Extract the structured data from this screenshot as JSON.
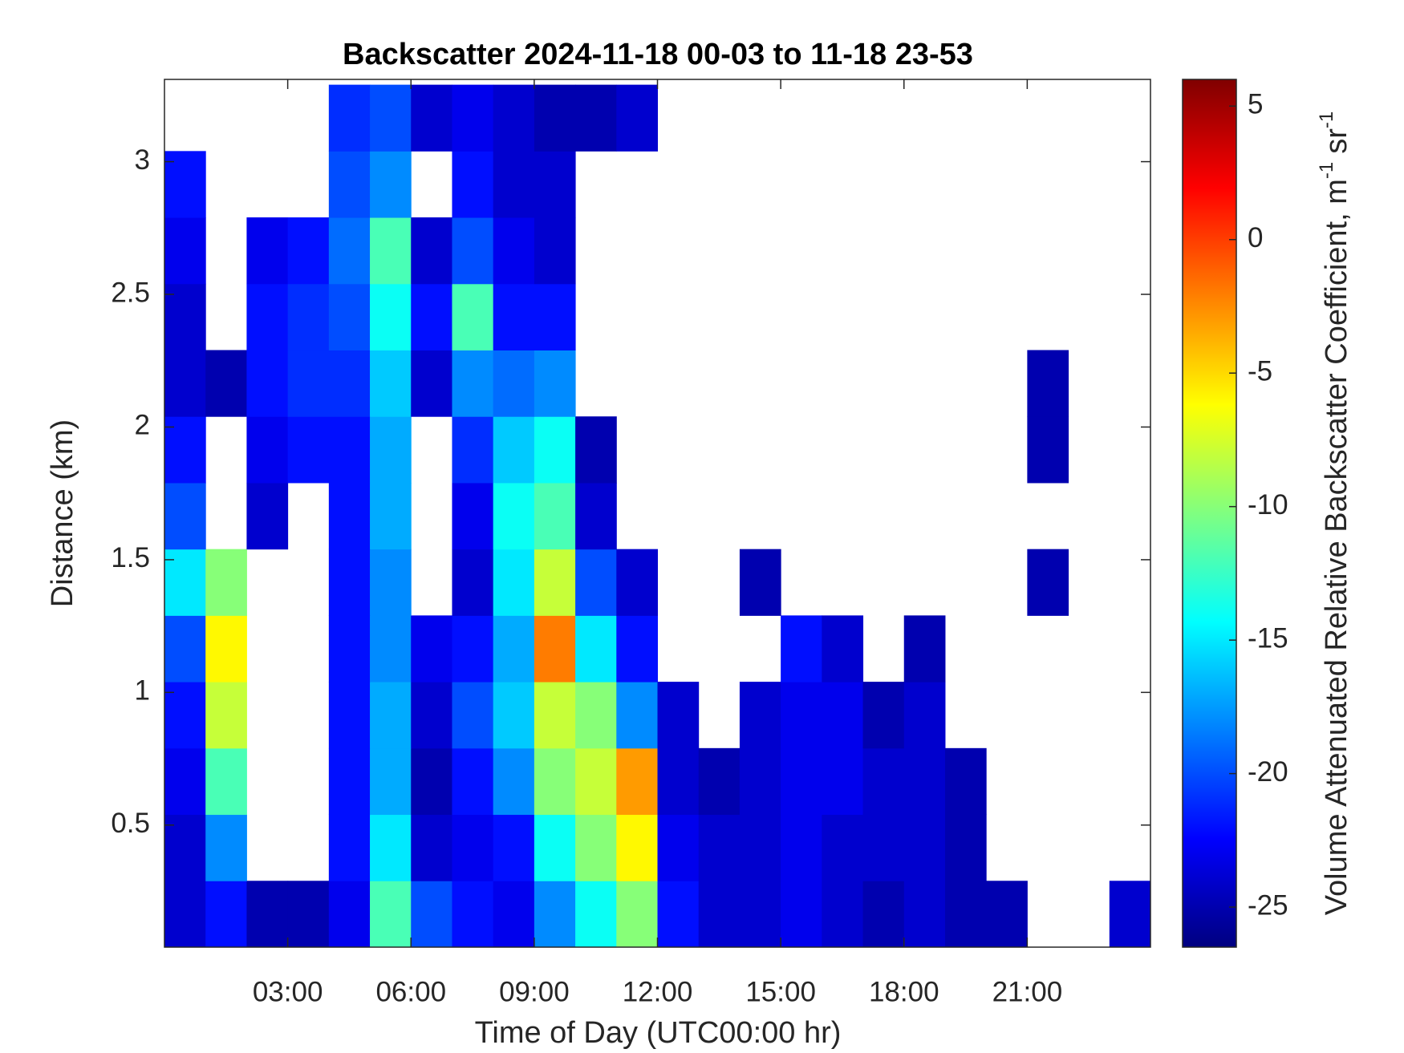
{
  "chart_data": {
    "type": "heatmap",
    "title": "Backscatter 2024-11-18 00-03 to 11-18 23-53",
    "x_label": "Time of Day (UTC00:00 hr)",
    "y_label": "Distance (km)",
    "colorbar_label": [
      "Volume Attenuated Relative Backscatter Coefficient, m",
      "-1",
      "sr",
      "-1"
    ],
    "colormap": "jet",
    "x": [
      0.5,
      1.5,
      2.5,
      3.5,
      4.5,
      5.5,
      6.5,
      7.5,
      8.5,
      9.5,
      10.5,
      11.5,
      12.5,
      13.5,
      14.5,
      15.5,
      16.5,
      17.5,
      18.5,
      19.5,
      20.5,
      21.5,
      22.5,
      23.5
    ],
    "y": [
      0.165,
      0.415,
      0.665,
      0.915,
      1.165,
      1.415,
      1.665,
      1.915,
      2.165,
      2.415,
      2.665,
      2.915,
      3.165
    ],
    "z": [
      [
        -24,
        -22,
        -25,
        -25,
        -23,
        -12,
        -20,
        -22,
        -23,
        -18,
        -14,
        -10,
        -22,
        -24,
        -24,
        -23,
        -24,
        -25,
        -24,
        -25,
        -25,
        null,
        null,
        -24
      ],
      [
        -24,
        -18,
        null,
        null,
        -22,
        -15,
        -24,
        -23,
        -22,
        -14,
        -10,
        -6,
        -23,
        -24,
        -24,
        -23,
        -24,
        -24,
        -24,
        -25,
        null,
        null,
        null,
        null
      ],
      [
        -23,
        -12,
        null,
        null,
        -22,
        -17,
        -25,
        -22,
        -18,
        -10,
        -8,
        -3,
        -24,
        -25,
        -24,
        -23,
        -23,
        -24,
        -24,
        -25,
        null,
        null,
        null,
        null
      ],
      [
        -22,
        -8,
        null,
        null,
        -22,
        -17,
        -24,
        -20,
        -16,
        -8,
        -10,
        -18,
        -24,
        null,
        -24,
        -23,
        -23,
        -25,
        -24,
        null,
        null,
        null,
        null,
        null
      ],
      [
        -20,
        -6,
        null,
        null,
        -22,
        -18,
        -23,
        -22,
        -17,
        -2,
        -15,
        -22,
        null,
        null,
        null,
        -22,
        -24,
        null,
        -25,
        null,
        null,
        null,
        null,
        null
      ],
      [
        -15,
        -10,
        null,
        null,
        -22,
        -18,
        null,
        -24,
        -15,
        -8,
        -20,
        -24,
        null,
        null,
        -25,
        null,
        null,
        null,
        null,
        null,
        null,
        -25,
        null,
        null
      ],
      [
        -20,
        null,
        -24,
        null,
        -22,
        -17,
        null,
        -23,
        -14,
        -12,
        -24,
        null,
        null,
        null,
        null,
        null,
        null,
        null,
        null,
        null,
        null,
        null,
        null,
        null
      ],
      [
        -22,
        null,
        -23,
        -22,
        -22,
        -17,
        null,
        -21,
        -16,
        -14,
        -25,
        null,
        null,
        null,
        null,
        null,
        null,
        null,
        null,
        null,
        null,
        -25,
        null,
        null
      ],
      [
        -24,
        -25,
        -22,
        -21,
        -21,
        -16,
        -24,
        -18,
        -19,
        -18,
        null,
        null,
        null,
        null,
        null,
        null,
        null,
        null,
        null,
        null,
        null,
        -25,
        null,
        null
      ],
      [
        -24,
        null,
        -22,
        -21,
        -20,
        -14,
        -22,
        -12,
        -22,
        -22,
        null,
        null,
        null,
        null,
        null,
        null,
        null,
        null,
        null,
        null,
        null,
        null,
        null,
        null
      ],
      [
        -23,
        null,
        -23,
        -22,
        -19,
        -12,
        -24,
        -20,
        -23,
        -24,
        null,
        null,
        null,
        null,
        null,
        null,
        null,
        null,
        null,
        null,
        null,
        null,
        null,
        null
      ],
      [
        -22,
        null,
        null,
        null,
        -20,
        -18,
        null,
        -22,
        -24,
        -24,
        null,
        null,
        null,
        null,
        null,
        null,
        null,
        null,
        null,
        null,
        null,
        null,
        null,
        null
      ],
      [
        null,
        null,
        null,
        null,
        -21,
        -20,
        -24,
        -23,
        -24,
        -25,
        -25,
        -24,
        null,
        null,
        null,
        null,
        null,
        null,
        null,
        null,
        null,
        null,
        null,
        null
      ]
    ],
    "xlim": [
      0,
      24
    ],
    "ylim": [
      0.04,
      3.31
    ],
    "clim": [
      -26.5,
      6
    ],
    "xticks": [
      {
        "value": 3,
        "label": "03:00"
      },
      {
        "value": 6,
        "label": "06:00"
      },
      {
        "value": 9,
        "label": "09:00"
      },
      {
        "value": 12,
        "label": "12:00"
      },
      {
        "value": 15,
        "label": "15:00"
      },
      {
        "value": 18,
        "label": "18:00"
      },
      {
        "value": 21,
        "label": "21:00"
      }
    ],
    "yticks": [
      0.5,
      1,
      1.5,
      2,
      2.5,
      3
    ],
    "cticks": [
      -25,
      -20,
      -15,
      -10,
      -5,
      0,
      5
    ]
  }
}
